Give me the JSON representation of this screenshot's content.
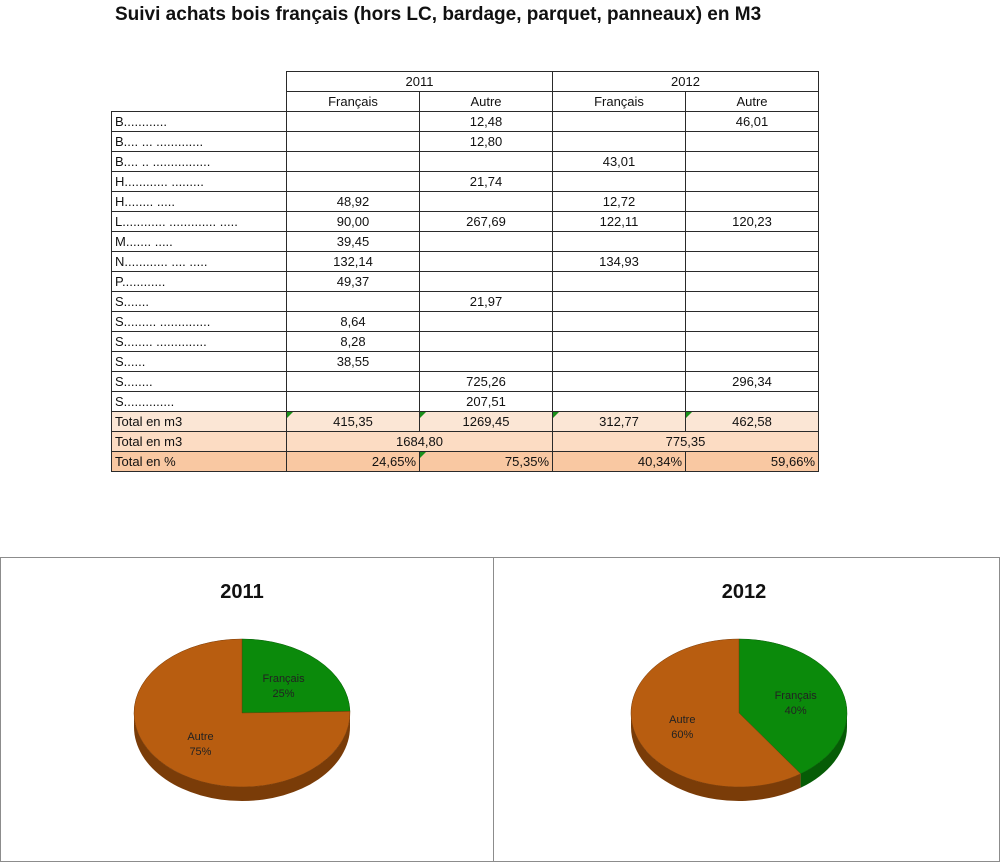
{
  "title": "Suivi achats bois français (hors LC, bardage, parquet, panneaux) en M3",
  "table": {
    "year_headers": [
      "2011",
      "2012"
    ],
    "sub_headers": [
      "Français",
      "Autre",
      "Français",
      "Autre"
    ],
    "rows": [
      {
        "label": "B............",
        "values": [
          "",
          "12,48",
          "",
          "46,01"
        ]
      },
      {
        "label": "B.... ... .............",
        "values": [
          "",
          "12,80",
          "",
          ""
        ]
      },
      {
        "label": "B.... .. ................",
        "values": [
          "",
          "",
          "43,01",
          ""
        ]
      },
      {
        "label": "H............ .........",
        "values": [
          "",
          "21,74",
          "",
          ""
        ]
      },
      {
        "label": "H........ .....",
        "values": [
          "48,92",
          "",
          "12,72",
          ""
        ]
      },
      {
        "label": "L............ ............. .....",
        "values": [
          "90,00",
          "267,69",
          "122,11",
          "120,23"
        ]
      },
      {
        "label": "M....... .....",
        "values": [
          "39,45",
          "",
          "",
          ""
        ]
      },
      {
        "label": "N............ .... .....",
        "values": [
          "132,14",
          "",
          "134,93",
          ""
        ]
      },
      {
        "label": "P............",
        "values": [
          "49,37",
          "",
          "",
          ""
        ]
      },
      {
        "label": "S.......",
        "values": [
          "",
          "21,97",
          "",
          ""
        ]
      },
      {
        "label": "S......... ..............",
        "values": [
          "8,64",
          "",
          "",
          ""
        ]
      },
      {
        "label": "S........ ..............",
        "values": [
          "8,28",
          "",
          "",
          ""
        ]
      },
      {
        "label": "S......",
        "values": [
          "38,55",
          "",
          "",
          ""
        ]
      },
      {
        "label": "S........",
        "values": [
          "",
          "725,26",
          "",
          "296,34"
        ]
      },
      {
        "label": "S..............",
        "values": [
          "",
          "207,51",
          "",
          ""
        ]
      }
    ],
    "total_m3_row": {
      "label": "Total en m3",
      "values": [
        "415,35",
        "1269,45",
        "312,77",
        "462,58"
      ]
    },
    "total_m3_combined_row": {
      "label": "Total en m3",
      "values": [
        "1684,80",
        "775,35"
      ]
    },
    "total_pct_row": {
      "label": "Total en %",
      "values": [
        "24,65%",
        "75,35%",
        "40,34%",
        "59,66%"
      ]
    }
  },
  "colors": {
    "francais": "#0b8a0b",
    "autre": "#b85d10"
  },
  "chart_data": [
    {
      "type": "pie",
      "title": "2011",
      "categories": [
        "Français",
        "Autre"
      ],
      "values": [
        24.65,
        75.35
      ],
      "labels": [
        {
          "name": "Français",
          "pct": "25%"
        },
        {
          "name": "Autre",
          "pct": "75%"
        }
      ]
    },
    {
      "type": "pie",
      "title": "2012",
      "categories": [
        "Français",
        "Autre"
      ],
      "values": [
        40.34,
        59.66
      ],
      "labels": [
        {
          "name": "Français",
          "pct": "40%"
        },
        {
          "name": "Autre",
          "pct": "60%"
        }
      ]
    }
  ]
}
